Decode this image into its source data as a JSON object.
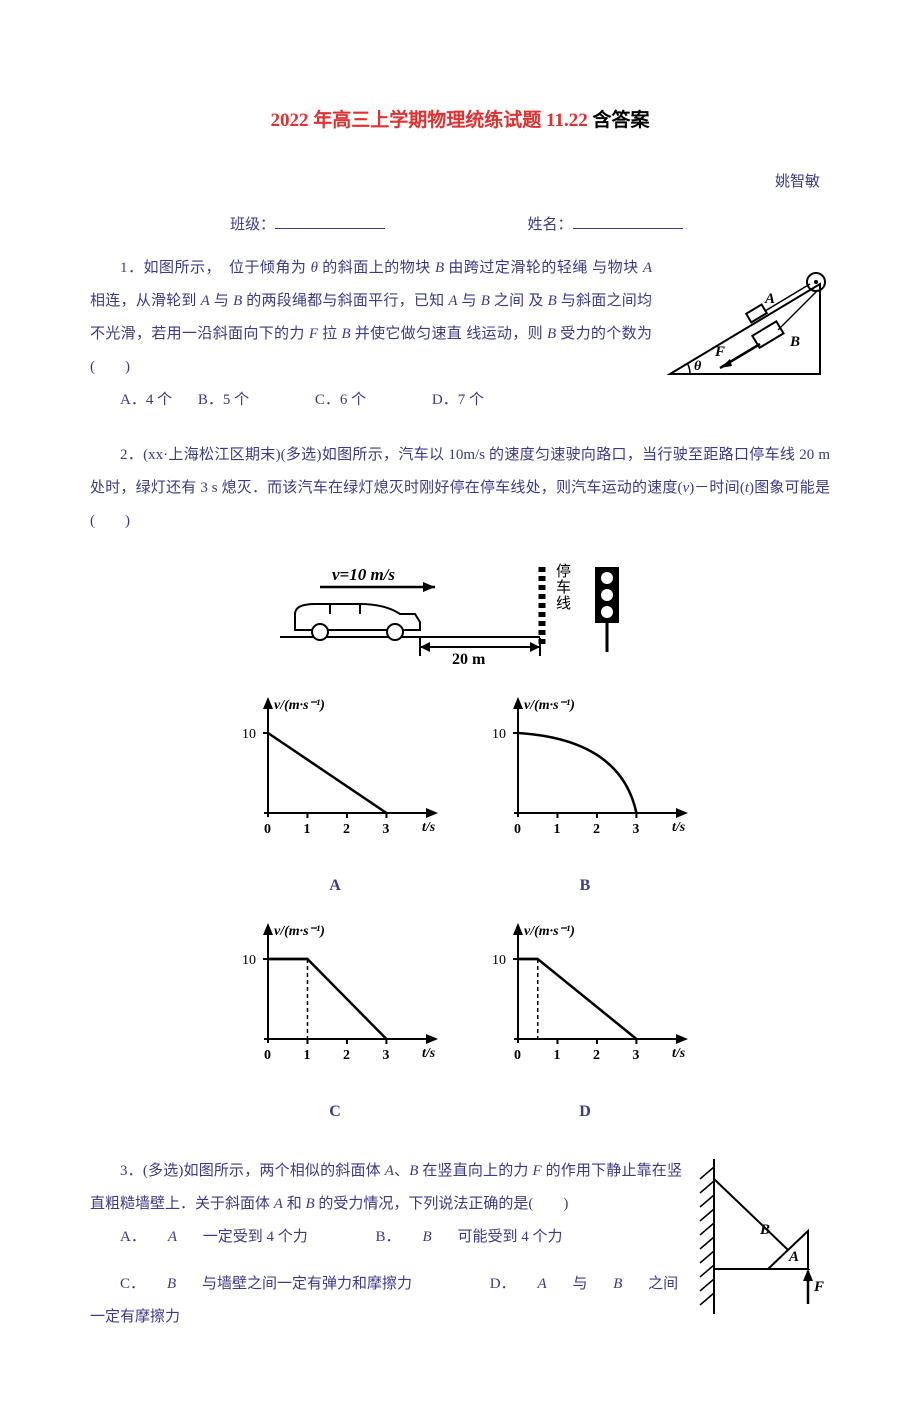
{
  "colors": {
    "text": "#3a3a8a",
    "title_red": "#e03030",
    "title_black": "#000000",
    "axis": "#000000",
    "bg": "#ffffff"
  },
  "title": {
    "part1": "2022 年高三上学期物理统练试题 11.22",
    "part2": " 含答案"
  },
  "author": "姚智敏",
  "form": {
    "class_label": "班级：",
    "name_label": "姓名：",
    "spacer": "　　　　　　　　　"
  },
  "q1": {
    "line1": "1．如图所示，　位于倾角为 ",
    "theta": "θ",
    "line1b": " 的斜面上的物块 ",
    "B": "B",
    "line1c": " 由跨过定滑轮的轻绳",
    "line2a": "与物块 ",
    "A": "A",
    "line2b": " 相连，从滑轮到 ",
    "line2c": " 与 ",
    "line2d": " 的两段绳都与斜面平行，已知 ",
    "line2e": " 之间",
    "line3a": "及 ",
    "line3b": " 与斜面之间均不光滑，若用一沿斜面向下的力 ",
    "F": "F",
    "line3c": " 拉 ",
    "line3d": " 并使它做匀速直",
    "line4a": "线运动，则 ",
    "line4b": " 受力的个数为　(　　)",
    "options": {
      "a": "A．4 个",
      "b": "B．5 个",
      "c": "C．6 个",
      "d": "D．7 个"
    },
    "figure": {
      "labelA": "A",
      "labelB": "B",
      "labelF": "F",
      "labelTheta": "θ"
    }
  },
  "q2": {
    "text": "2．(xx·上海松江区期末)(多选)如图所示，汽车以 10m/s 的速度匀速驶向路口，当行驶至距路口停车线 20 m 处时，绿灯还有 3 s 熄灭．而该汽车在绿灯熄灭时刚好停在停车线处，则汽车运动的速度(",
    "v": "v",
    "text2": ")－时间(",
    "t": "t",
    "text3": ")图象可能是　　　(　　)",
    "top_figure": {
      "v_label": "v=10 m/s",
      "dist_label": "20 m",
      "stop_label": "停车线"
    },
    "charts": {
      "ylabel": "v/(m·s⁻¹)",
      "xlabel": "t/s",
      "ymax_label": "10",
      "xticks": [
        "0",
        "1",
        "2",
        "3"
      ],
      "ylim": [
        0,
        12
      ],
      "xlim": [
        0,
        3.8
      ],
      "axis_color": "#000000",
      "line_color": "#000000",
      "line_width": 2.5,
      "series": {
        "A": {
          "label": "A",
          "type": "line",
          "points": [
            [
              0,
              10
            ],
            [
              3,
              0
            ]
          ]
        },
        "B": {
          "label": "B",
          "type": "curve",
          "kind": "concave-down",
          "start": [
            0,
            10
          ],
          "end": [
            3,
            0
          ]
        },
        "C": {
          "label": "C",
          "type": "polyline",
          "points": [
            [
              0,
              10
            ],
            [
              1,
              10
            ],
            [
              3,
              0
            ]
          ]
        },
        "D": {
          "label": "D",
          "type": "polyline",
          "points": [
            [
              0,
              10
            ],
            [
              0.5,
              10
            ],
            [
              3,
              0
            ]
          ]
        }
      }
    }
  },
  "q3": {
    "text1": "3．(多选)如图所示，两个相似的斜面体 ",
    "A": "A",
    "sep": "、",
    "B": "B",
    "text2": " 在竖直向上的力 ",
    "F": "F",
    "text3": " 的作用下静止靠在竖直粗糙墙壁上．关于斜面体 ",
    "text4": " 和 ",
    "text5": " 的受力情况，下列说法正确的是(　　)",
    "options": {
      "a_pre": "A．",
      "a_txt": " 一定受到 4 个力",
      "b_pre": "B．",
      "b_txt": " 可能受到 4 个力",
      "c_pre": "C．",
      "c_txt": " 与墙壁之间一定有弹力和摩擦力",
      "d_pre": "D．",
      "d_txt": " 之间一定有摩擦力"
    },
    "figure": {
      "labelA": "A",
      "labelB": "B",
      "labelF": "F"
    }
  }
}
